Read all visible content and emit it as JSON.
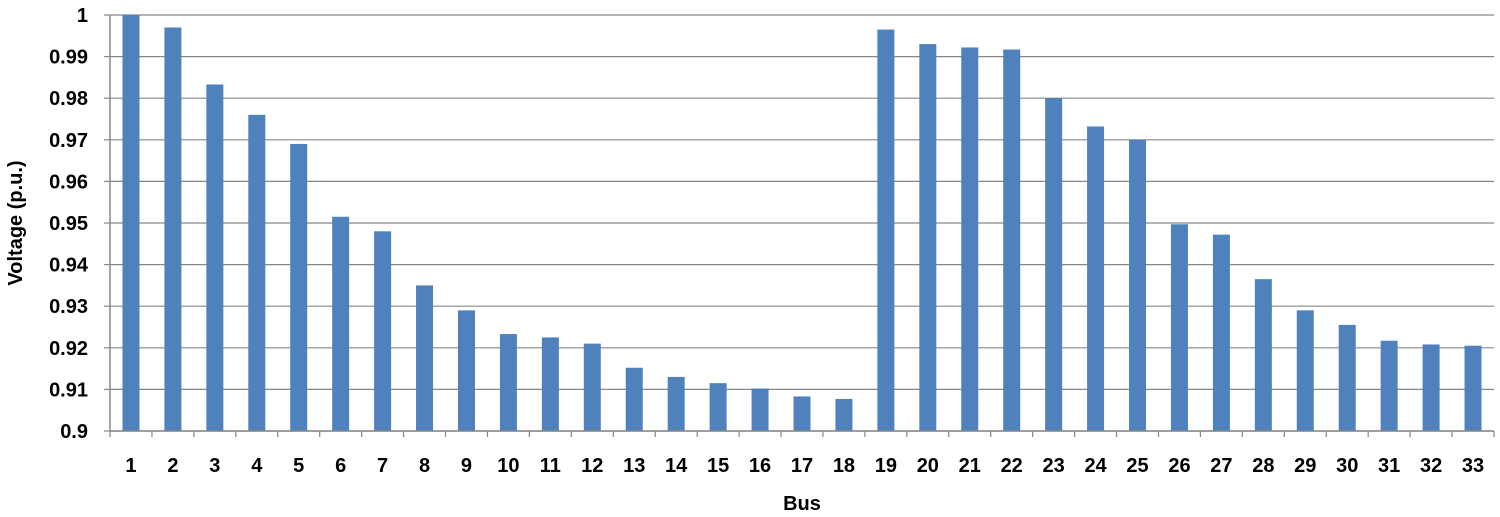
{
  "chart_data": {
    "type": "bar",
    "xlabel": "Bus",
    "ylabel": "Voltage (p.u.)",
    "ylim": [
      0.9,
      1.0
    ],
    "y_ticks": [
      "0.9",
      "0.91",
      "0.92",
      "0.93",
      "0.94",
      "0.95",
      "0.96",
      "0.97",
      "0.98",
      "0.99",
      "1"
    ],
    "grid": true,
    "bar_color": "#4f81bd",
    "categories": [
      "1",
      "2",
      "3",
      "4",
      "5",
      "6",
      "7",
      "8",
      "9",
      "10",
      "11",
      "12",
      "13",
      "14",
      "15",
      "16",
      "17",
      "18",
      "19",
      "20",
      "21",
      "22",
      "23",
      "24",
      "25",
      "26",
      "27",
      "28",
      "29",
      "30",
      "31",
      "32",
      "33"
    ],
    "values": [
      1.0,
      0.997,
      0.9833,
      0.976,
      0.969,
      0.9515,
      0.948,
      0.935,
      0.929,
      0.9233,
      0.9225,
      0.921,
      0.9152,
      0.913,
      0.9115,
      0.9102,
      0.9083,
      0.9077,
      0.9965,
      0.993,
      0.9922,
      0.9917,
      0.98,
      0.9732,
      0.97,
      0.9497,
      0.9472,
      0.9365,
      0.929,
      0.9255,
      0.9217,
      0.9208,
      0.9205
    ]
  }
}
